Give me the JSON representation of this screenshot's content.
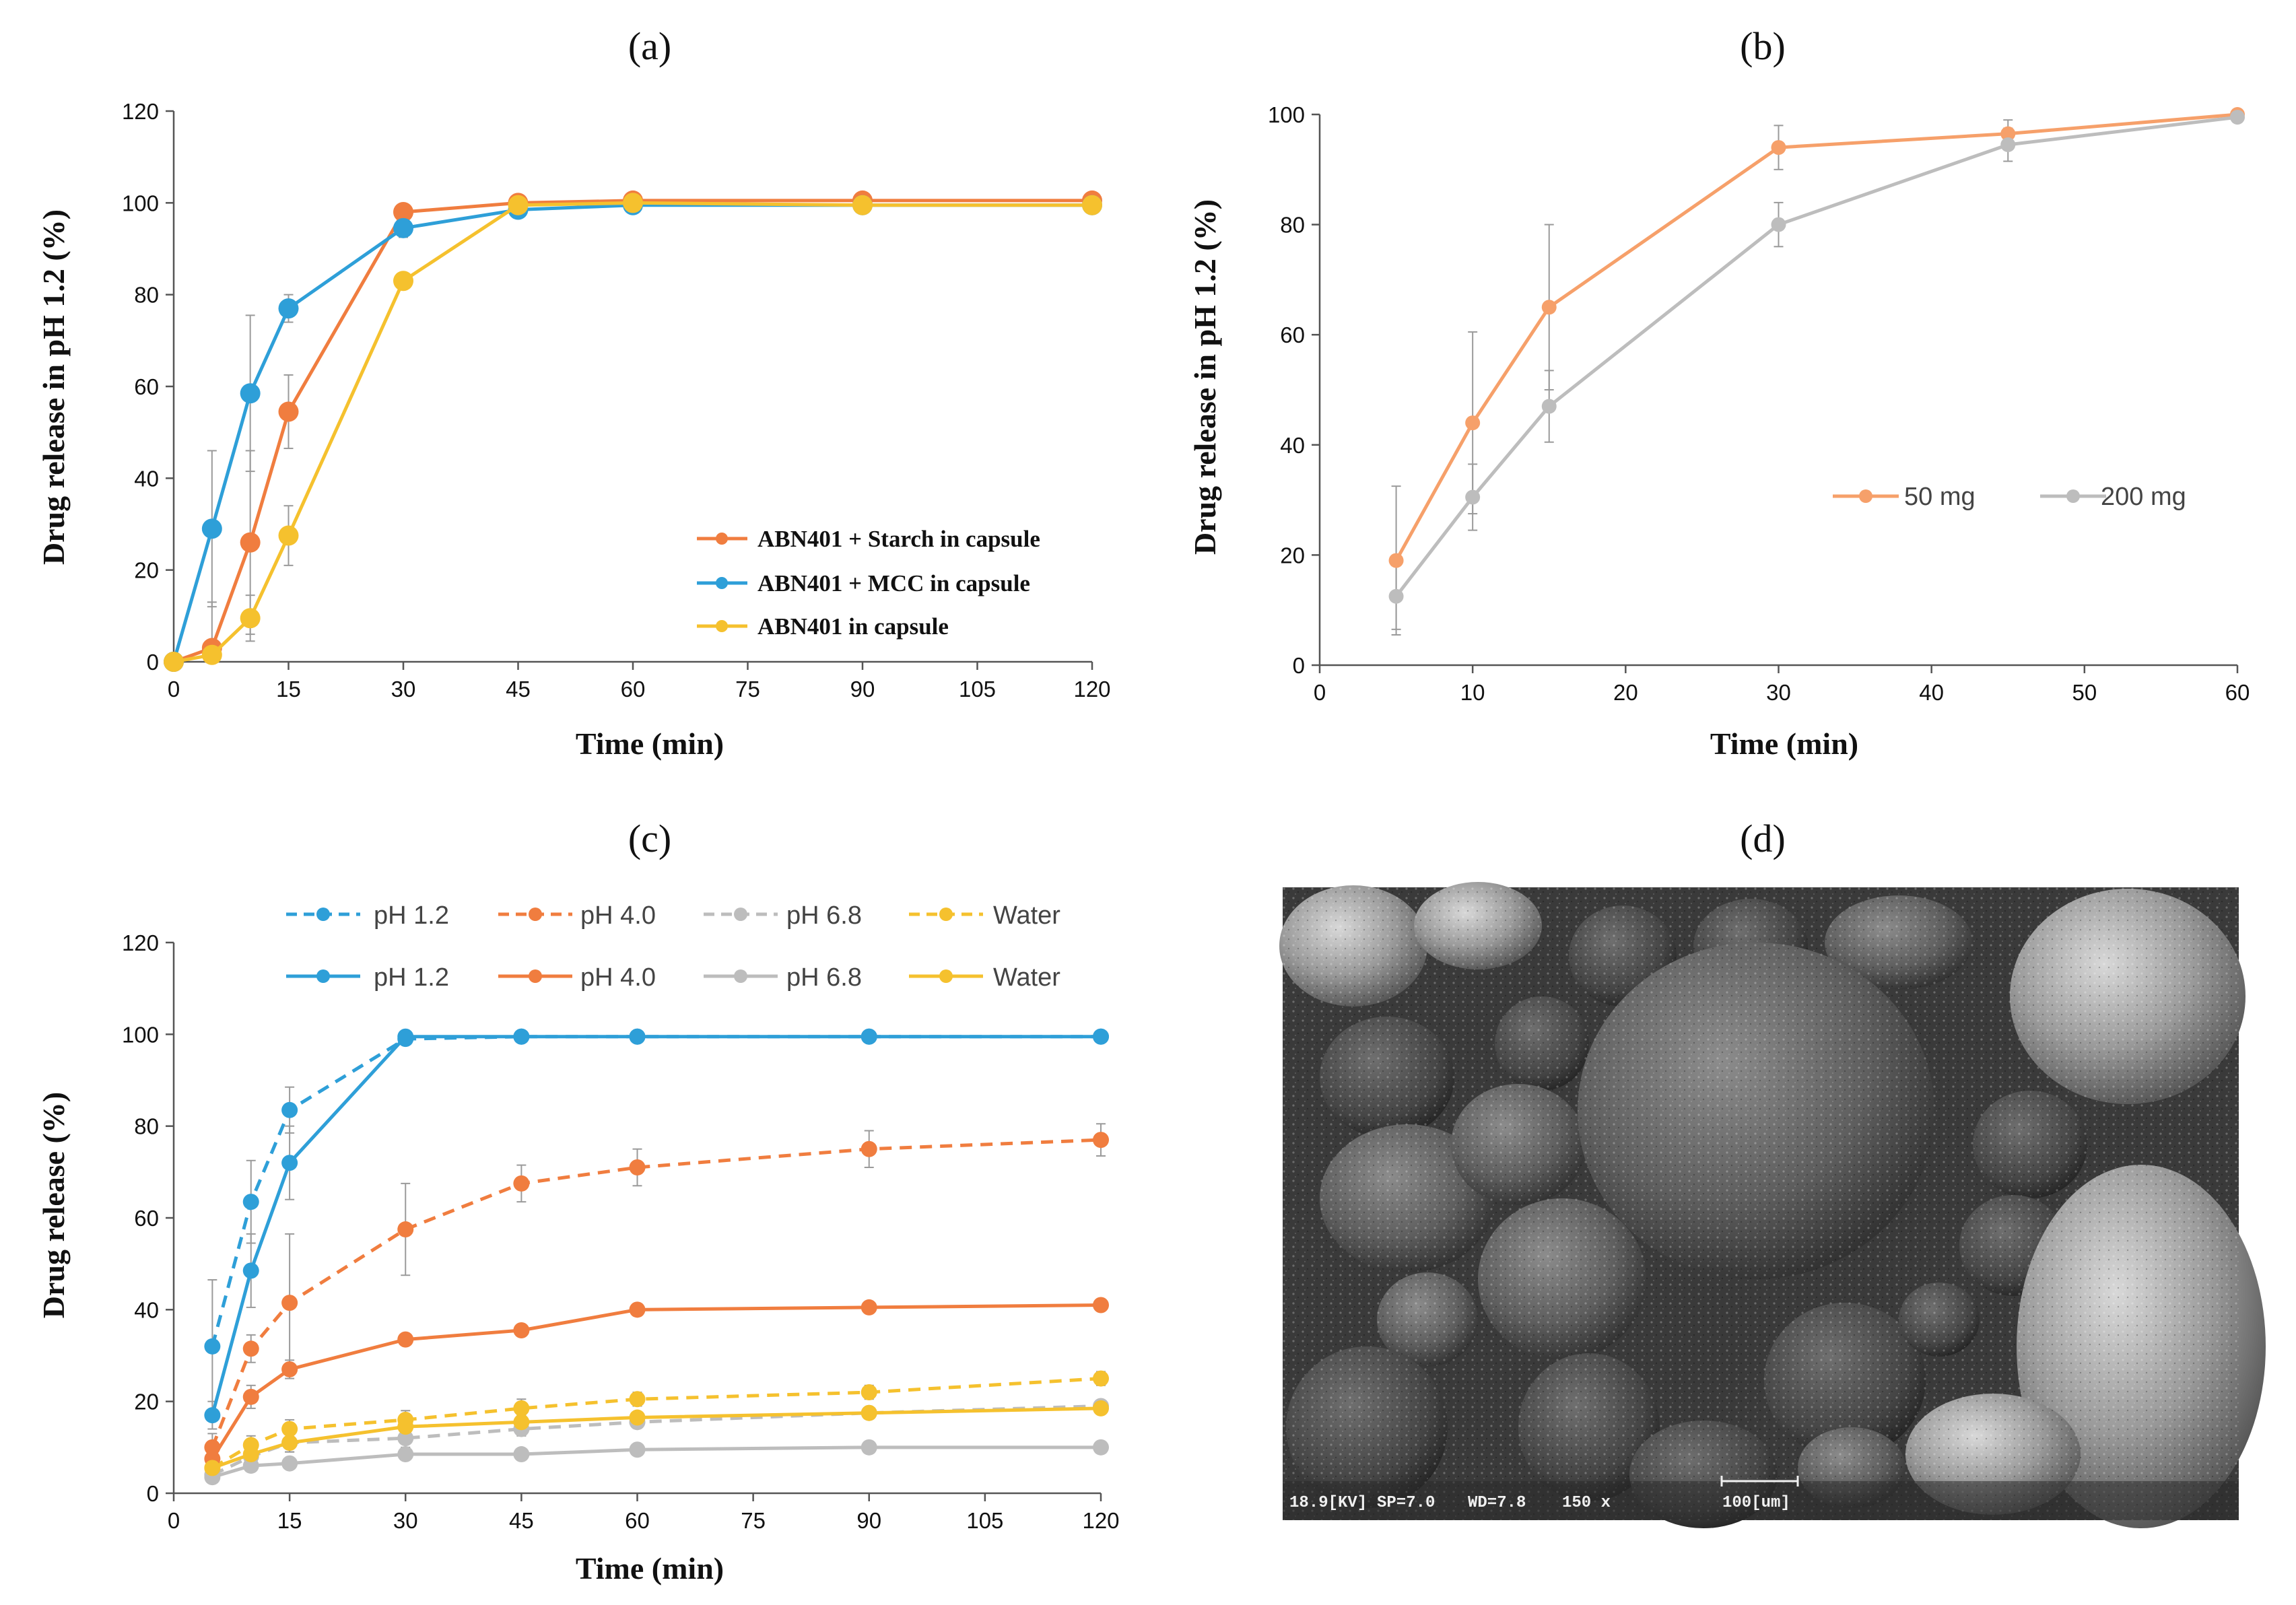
{
  "chart_data": [
    {
      "panel": "(a)",
      "type": "line",
      "title": "(a)",
      "xlabel": "Time (min)",
      "ylabel": "Drug release in pH 1.2 (%)",
      "xlim": [
        0,
        120
      ],
      "ylim": [
        0,
        120
      ],
      "xticks": [
        0,
        15,
        30,
        45,
        60,
        75,
        90,
        105,
        120
      ],
      "yticks": [
        0,
        20,
        40,
        60,
        80,
        100,
        120
      ],
      "x_positions": "proportional",
      "legend_position": "bottom-right",
      "x": [
        0,
        5,
        10,
        15,
        30,
        45,
        60,
        90,
        120
      ],
      "series": [
        {
          "name": "ABN401 + Starch in capsule",
          "color": "#F07D3F",
          "dashed": false,
          "values": [
            0,
            3,
            26,
            54.5,
            98,
            100,
            100.5,
            100.5,
            100.5
          ],
          "errors": [
            0,
            10,
            20,
            8,
            1.5,
            1,
            1,
            1,
            1
          ]
        },
        {
          "name": "ABN401 + MCC in capsule",
          "color": "#2E9FD8",
          "dashed": false,
          "values": [
            0,
            29,
            58.5,
            77,
            94.5,
            98.5,
            99.5,
            99.5,
            99.5
          ],
          "errors": [
            0,
            17,
            17,
            3,
            2,
            1,
            1,
            1,
            1
          ]
        },
        {
          "name": "ABN401 in capsule",
          "color": "#F5C12E",
          "dashed": false,
          "values": [
            0,
            1.5,
            9.5,
            27.5,
            83,
            99.5,
            100,
            99.5,
            99.5
          ],
          "errors": [
            0,
            3,
            5,
            6.5,
            1.5,
            1,
            1,
            1,
            1
          ]
        }
      ]
    },
    {
      "panel": "(b)",
      "type": "line",
      "title": "(b)",
      "xlabel": "Time (min)",
      "ylabel": "Drug release in pH 1.2 (%)",
      "xlim": [
        0,
        60
      ],
      "ylim": [
        0,
        100
      ],
      "xticks": [
        0,
        10,
        20,
        30,
        40,
        50,
        60
      ],
      "yticks": [
        0,
        20,
        40,
        60,
        80,
        100
      ],
      "x_positions": "proportional",
      "legend_position": "center-right",
      "x": [
        5,
        10,
        15,
        30,
        45,
        60
      ],
      "series": [
        {
          "name": "50 mg",
          "color": "#F6A06A",
          "dashed": false,
          "values": [
            19,
            44,
            65,
            94,
            96.5,
            100
          ],
          "errors": [
            13.5,
            16.5,
            15,
            4,
            2.5,
            0.5
          ]
        },
        {
          "name": "200 mg",
          "color": "#BDBDBD",
          "dashed": false,
          "values": [
            12.5,
            30.5,
            47,
            80,
            94.5,
            99.5
          ],
          "errors": [
            6,
            6,
            6.5,
            4,
            3,
            0.5
          ]
        }
      ]
    },
    {
      "panel": "(c)",
      "type": "line",
      "title": "(c)",
      "xlabel": "Time (min)",
      "ylabel": "Drug release  (%)",
      "xlim": [
        0,
        120
      ],
      "ylim": [
        0,
        120
      ],
      "xticks": [
        0,
        15,
        30,
        45,
        60,
        75,
        90,
        105,
        120
      ],
      "yticks": [
        0,
        20,
        40,
        60,
        80,
        100,
        120
      ],
      "x_positions": "proportional",
      "legend_position": "top",
      "x": [
        5,
        10,
        15,
        30,
        45,
        60,
        90,
        120
      ],
      "series": [
        {
          "name": "pH 1.2",
          "color": "#2E9FD8",
          "dashed": true,
          "values": [
            32,
            63.5,
            83.5,
            99,
            99.5,
            99.5,
            99.5,
            99.5
          ],
          "errors": [
            14.5,
            9,
            5,
            1,
            0.5,
            0.5,
            0.5,
            0.5
          ]
        },
        {
          "name": "pH 4.0",
          "color": "#F07D3F",
          "dashed": true,
          "values": [
            10,
            31.5,
            41.5,
            57.5,
            67.5,
            71,
            75,
            77
          ],
          "errors": [
            3,
            3,
            15,
            10,
            4,
            4,
            4,
            3.5
          ]
        },
        {
          "name": "pH 6.8",
          "color": "#BDBDBD",
          "dashed": true,
          "values": [
            4,
            8,
            11,
            12,
            14,
            15.5,
            17.5,
            19
          ],
          "errors": [
            1.5,
            2,
            2,
            2,
            1.5,
            1,
            1,
            1
          ]
        },
        {
          "name": "Water",
          "color": "#F5C12E",
          "dashed": true,
          "values": [
            5.5,
            10.5,
            14,
            16,
            18.5,
            20.5,
            22,
            25
          ],
          "errors": [
            1.5,
            2,
            2,
            2,
            2,
            1.5,
            1.5,
            1.5
          ]
        },
        {
          "name": "pH 1.2",
          "color": "#2E9FD8",
          "dashed": false,
          "values": [
            17,
            48.5,
            72,
            99.5,
            99.5,
            99.5,
            99.5,
            99.5
          ],
          "errors": [
            3,
            8,
            8,
            1,
            0.5,
            0.5,
            0.5,
            0.5
          ]
        },
        {
          "name": "pH 4.0",
          "color": "#F07D3F",
          "dashed": false,
          "values": [
            7.5,
            21,
            27,
            33.5,
            35.5,
            40,
            40.5,
            41
          ],
          "errors": [
            2,
            2.5,
            2,
            1,
            1,
            1,
            1,
            1
          ]
        },
        {
          "name": "pH 6.8",
          "color": "#BDBDBD",
          "dashed": false,
          "values": [
            3.5,
            6,
            6.5,
            8.5,
            8.5,
            9.5,
            10,
            10
          ],
          "errors": [
            1,
            1,
            1,
            1,
            1,
            1,
            1,
            1
          ]
        },
        {
          "name": "Water",
          "color": "#F5C12E",
          "dashed": false,
          "values": [
            5.5,
            8.5,
            11,
            14.5,
            15.5,
            16.5,
            17.5,
            18.5
          ],
          "errors": [
            1.5,
            2,
            2,
            2,
            1.5,
            1,
            1,
            1
          ]
        }
      ]
    }
  ],
  "panel_d": {
    "title": "(d)",
    "image": "sem-micrograph",
    "info_bar": {
      "voltage": "18.9[KV]",
      "sp": "SP=7.0",
      "wd": "WD=7.8",
      "magnification": "150 x",
      "scale": "100[um]"
    }
  }
}
